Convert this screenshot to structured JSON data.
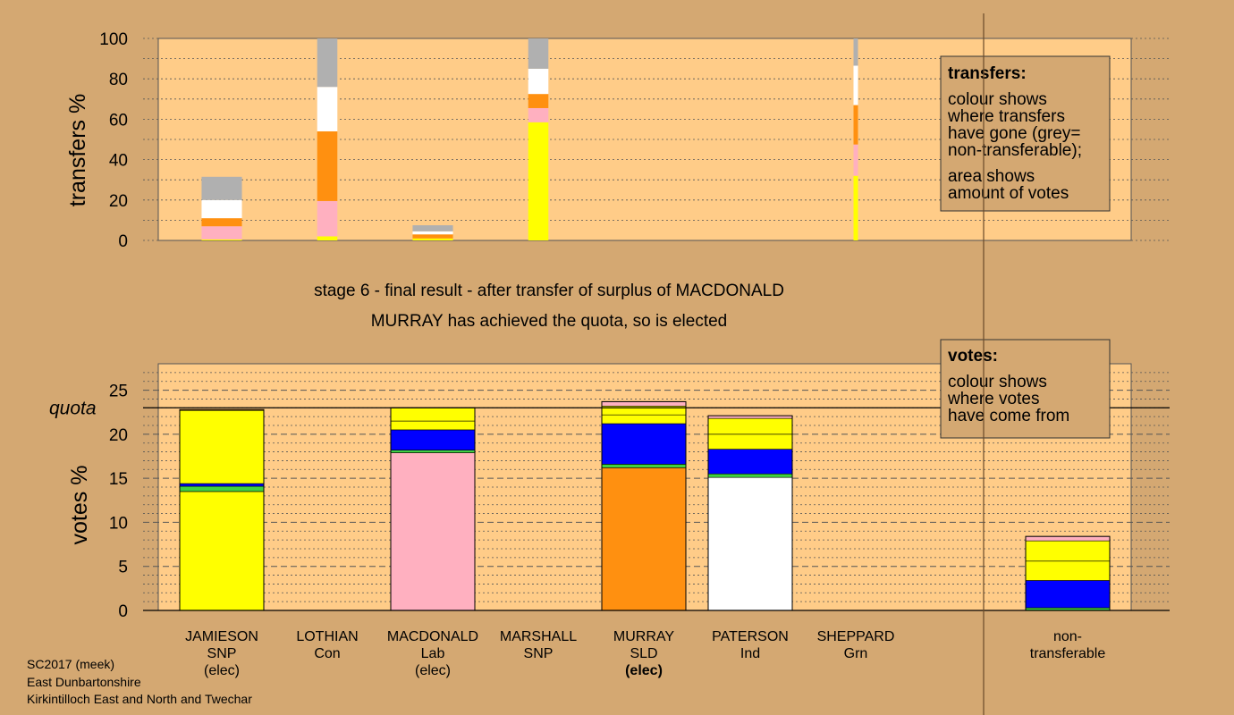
{
  "upper_chart": {
    "ylabel": "transfers %",
    "yticks": [
      "0",
      "20",
      "40",
      "60",
      "80",
      "100"
    ],
    "legend": {
      "title": "transfers:",
      "lines": [
        "colour shows",
        "where transfers",
        "have gone (grey=",
        "non-transferable);",
        "area shows",
        "amount of votes"
      ]
    }
  },
  "titles": {
    "line1": "stage 6 - final result - after transfer of surplus of MACDONALD",
    "line2": "MURRAY has achieved the quota, so is elected"
  },
  "lower_chart": {
    "ylabel": "votes %",
    "quota_label": "quota",
    "yticks": [
      "0",
      "5",
      "10",
      "15",
      "20",
      "25"
    ],
    "legend": {
      "title": "votes:",
      "lines": [
        "colour shows",
        "where votes",
        "have come from"
      ]
    }
  },
  "candidates": [
    {
      "name": "JAMIESON",
      "party": "SNP",
      "status": "(elec)"
    },
    {
      "name": "LOTHIAN",
      "party": "Con",
      "status": ""
    },
    {
      "name": "MACDONALD",
      "party": "Lab",
      "status": "(elec)"
    },
    {
      "name": "MARSHALL",
      "party": "SNP",
      "status": ""
    },
    {
      "name": "MURRAY",
      "party": "SLD",
      "status": "(elec)"
    },
    {
      "name": "PATERSON",
      "party": "Ind",
      "status": ""
    },
    {
      "name": "SHEPPARD",
      "party": "Grn",
      "status": ""
    }
  ],
  "nontransferable_label": [
    "non-",
    "transferable"
  ],
  "footer": [
    "SC2017 (meek)",
    "East Dunbartonshire",
    "Kirkintilloch East and North and Twechar"
  ],
  "colors": {
    "background": "#d4a872",
    "plot": "#ffcc88",
    "SNP": "#ffff00",
    "Con": "#0000ff",
    "Lab": "#ffb0c0",
    "SLD": "#ff9010",
    "Ind": "#ffffff",
    "Grn": "#40d040",
    "nontransferable": "#b0b0b0"
  },
  "chart_data": [
    {
      "type": "bar",
      "stacked": true,
      "ylabel": "transfers %",
      "ylim": [
        0,
        100
      ],
      "categories": [
        "JAMIESON",
        "LOTHIAN",
        "MACDONALD",
        "MARSHALL",
        "MURRAY",
        "PATERSON",
        "SHEPPARD"
      ],
      "bars": [
        {
          "category": "JAMIESON",
          "width_share": 0.4,
          "segments": [
            {
              "to": "JAMIESON",
              "value": 0.5
            },
            {
              "to": "MACDONALD",
              "value": 6.5
            },
            {
              "to": "MURRAY",
              "value": 4
            },
            {
              "to": "PATERSON",
              "value": 9
            },
            {
              "to": "non-transferable",
              "value": 11.5
            }
          ]
        },
        {
          "category": "LOTHIAN",
          "width_share": 0.2,
          "segments": [
            {
              "to": "JAMIESON",
              "value": 2
            },
            {
              "to": "MACDONALD",
              "value": 17.5
            },
            {
              "to": "MURRAY",
              "value": 34.5
            },
            {
              "to": "PATERSON",
              "value": 22
            },
            {
              "to": "non-transferable",
              "value": 24
            }
          ]
        },
        {
          "category": "MACDONALD",
          "width_share": 0.4,
          "segments": [
            {
              "to": "JAMIESON",
              "value": 1
            },
            {
              "to": "MURRAY",
              "value": 2
            },
            {
              "to": "PATERSON",
              "value": 1.5
            },
            {
              "to": "non-transferable",
              "value": 3
            }
          ]
        },
        {
          "category": "MARSHALL",
          "width_share": 0.2,
          "segments": [
            {
              "to": "JAMIESON",
              "value": 58.5
            },
            {
              "to": "MACDONALD",
              "value": 7
            },
            {
              "to": "MURRAY",
              "value": 7
            },
            {
              "to": "PATERSON",
              "value": 12.5
            },
            {
              "to": "non-transferable",
              "value": 15
            }
          ]
        },
        {
          "category": "SHEPPARD",
          "width_share": 0.03,
          "segments": [
            {
              "to": "JAMIESON",
              "value": 32
            },
            {
              "to": "MACDONALD",
              "value": 15.5
            },
            {
              "to": "MURRAY",
              "value": 19.5
            },
            {
              "to": "PATERSON",
              "value": 19.5
            },
            {
              "to": "non-transferable",
              "value": 13.5
            }
          ]
        }
      ]
    },
    {
      "type": "bar",
      "stacked": true,
      "ylabel": "votes %",
      "ylim": [
        0,
        28
      ],
      "quota": 23,
      "categories": [
        "JAMIESON",
        "LOTHIAN",
        "MACDONALD",
        "MARSHALL",
        "MURRAY",
        "PATERSON",
        "SHEPPARD",
        "non-transferable"
      ],
      "bars": [
        {
          "category": "JAMIESON",
          "segments": [
            {
              "from": "JAMIESON",
              "value": 13.5
            },
            {
              "from": "SHEPPARD",
              "value": 0.6
            },
            {
              "from": "LOTHIAN",
              "value": 0.3
            },
            {
              "from": "MARSHALL",
              "value": 8.3
            },
            {
              "from": "MURRAY",
              "value": 0.1
            }
          ]
        },
        {
          "category": "LOTHIAN",
          "segments": []
        },
        {
          "category": "MACDONALD",
          "segments": [
            {
              "from": "MACDONALD",
              "value": 17.9
            },
            {
              "from": "SHEPPARD",
              "value": 0.3
            },
            {
              "from": "LOTHIAN",
              "value": 2.3
            },
            {
              "from": "JAMIESON",
              "value": 1.0
            },
            {
              "from": "MARSHALL",
              "value": 1.5
            }
          ]
        },
        {
          "category": "MARSHALL",
          "segments": []
        },
        {
          "category": "MURRAY",
          "segments": [
            {
              "from": "MURRAY",
              "value": 16.2
            },
            {
              "from": "SHEPPARD",
              "value": 0.4
            },
            {
              "from": "LOTHIAN",
              "value": 4.6
            },
            {
              "from": "JAMIESON",
              "value": 1.0
            },
            {
              "from": "MARSHALL",
              "value": 1.0
            },
            {
              "from": "MACDONALD",
              "value": 0.5
            }
          ]
        },
        {
          "category": "PATERSON",
          "segments": [
            {
              "from": "PATERSON",
              "value": 15.1
            },
            {
              "from": "SHEPPARD",
              "value": 0.4
            },
            {
              "from": "LOTHIAN",
              "value": 2.8
            },
            {
              "from": "JAMIESON",
              "value": 1.7
            },
            {
              "from": "MARSHALL",
              "value": 1.8
            },
            {
              "from": "MACDONALD",
              "value": 0.3
            }
          ]
        },
        {
          "category": "SHEPPARD",
          "segments": []
        },
        {
          "category": "non-transferable",
          "segments": [
            {
              "from": "SHEPPARD",
              "value": 0.3
            },
            {
              "from": "LOTHIAN",
              "value": 3.1
            },
            {
              "from": "JAMIESON",
              "value": 2.2
            },
            {
              "from": "MARSHALL",
              "value": 2.3
            },
            {
              "from": "MACDONALD",
              "value": 0.5
            }
          ]
        }
      ]
    }
  ]
}
